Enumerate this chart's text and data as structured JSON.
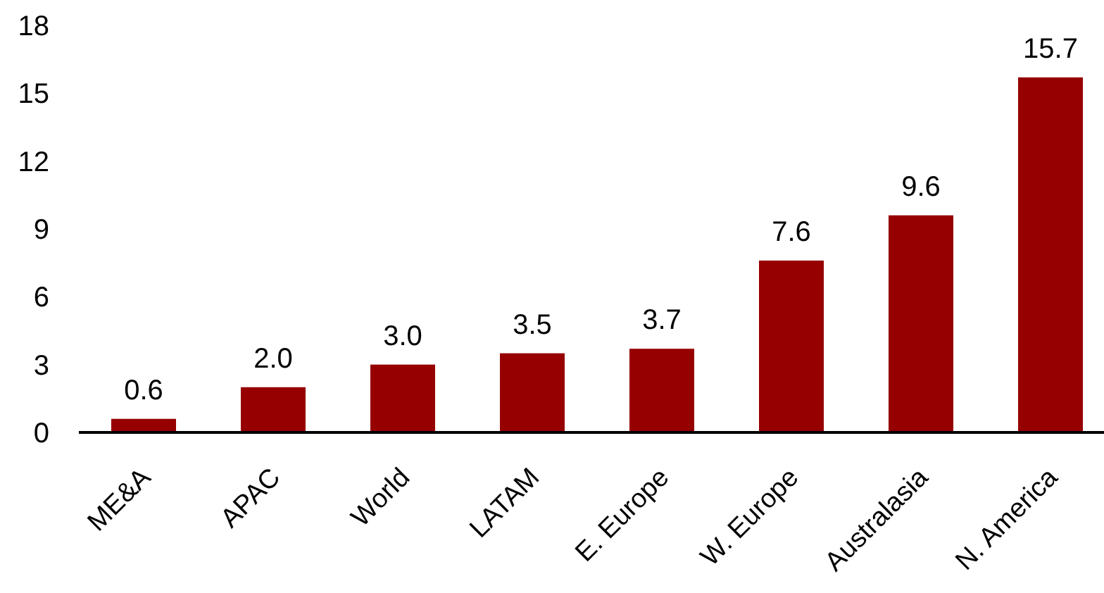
{
  "chart_data": {
    "type": "bar",
    "categories": [
      "ME&A",
      "APAC",
      "World",
      "LATAM",
      "E. Europe",
      "W. Europe",
      "Australasia",
      "N. America"
    ],
    "values": [
      0.6,
      2.0,
      3.0,
      3.5,
      3.7,
      7.6,
      9.6,
      15.7
    ],
    "color": "#960000",
    "ylim": [
      0,
      18
    ],
    "yticks": [
      0,
      3,
      6,
      9,
      12,
      15,
      18
    ],
    "value_labels": [
      "0.6",
      "2.0",
      "3.0",
      "3.5",
      "3.7",
      "7.6",
      "9.6",
      "15.7"
    ]
  }
}
